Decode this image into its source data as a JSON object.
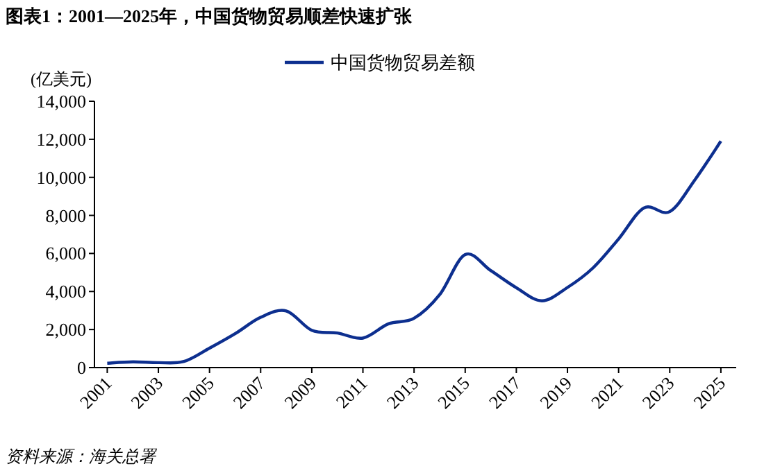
{
  "chart_data": {
    "type": "line",
    "title": "图表1：2001—2025年，中国货物贸易顺差快速扩张",
    "ylabel": "(亿美元)",
    "x": [
      2001,
      2002,
      2003,
      2004,
      2005,
      2006,
      2007,
      2008,
      2009,
      2010,
      2011,
      2012,
      2013,
      2014,
      2015,
      2016,
      2017,
      2018,
      2019,
      2020,
      2021,
      2022,
      2023,
      2024,
      2025
    ],
    "series": [
      {
        "name": "中国货物贸易差额",
        "color": "#0d2f8f",
        "values": [
          230,
          300,
          260,
          320,
          1020,
          1780,
          2640,
          2980,
          1960,
          1820,
          1550,
          2300,
          2590,
          3830,
          5940,
          5100,
          4200,
          3510,
          4210,
          5240,
          6760,
          8400,
          8200,
          9900,
          11900
        ]
      }
    ],
    "xlim": [
      2000.5,
      2025.6
    ],
    "xticks": [
      2001,
      2003,
      2005,
      2007,
      2009,
      2011,
      2013,
      2015,
      2017,
      2019,
      2021,
      2023,
      2025
    ],
    "ylim": [
      0,
      14000
    ],
    "yticks": [
      {
        "value": 0,
        "label": "0"
      },
      {
        "value": 2000,
        "label": "2,000"
      },
      {
        "value": 4000,
        "label": "4,000"
      },
      {
        "value": 6000,
        "label": "6,000"
      },
      {
        "value": 8000,
        "label": "8,000"
      },
      {
        "value": 10000,
        "label": "10,000"
      },
      {
        "value": 12000,
        "label": "12,000"
      },
      {
        "value": 14000,
        "label": "14,000"
      }
    ],
    "legend": "top",
    "grid": false,
    "annotations": [
      "资料来源：海关总署"
    ]
  }
}
